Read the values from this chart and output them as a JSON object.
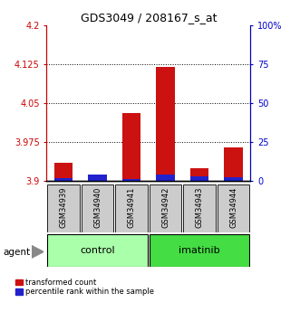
{
  "title": "GDS3049 / 208167_s_at",
  "samples": [
    "GSM34939",
    "GSM34940",
    "GSM34941",
    "GSM34942",
    "GSM34943",
    "GSM34944"
  ],
  "red_values": [
    3.935,
    3.91,
    4.03,
    4.12,
    3.925,
    3.965
  ],
  "blue_values": [
    3.905,
    3.912,
    3.903,
    3.912,
    3.908,
    3.907
  ],
  "base": 3.9,
  "ymin": 3.9,
  "ymax": 4.2,
  "yticks": [
    3.9,
    3.975,
    4.05,
    4.125,
    4.2
  ],
  "ytick_labels": [
    "3.9",
    "3.975",
    "4.05",
    "4.125",
    "4.2"
  ],
  "right_yticks": [
    0,
    25,
    50,
    75,
    100
  ],
  "right_ytick_labels": [
    "0",
    "25",
    "50",
    "75",
    "100%"
  ],
  "groups": [
    {
      "label": "control",
      "indices": [
        0,
        1,
        2
      ],
      "color": "#AAFFAA"
    },
    {
      "label": "imatinib",
      "indices": [
        3,
        4,
        5
      ],
      "color": "#44DD44"
    }
  ],
  "bar_width": 0.55,
  "red_color": "#CC1111",
  "blue_color": "#2222CC",
  "legend_red": "transformed count",
  "legend_blue": "percentile rank within the sample",
  "agent_label": "agent",
  "title_color": "black",
  "left_axis_color": "#CC0000",
  "right_axis_color": "#0000CC"
}
